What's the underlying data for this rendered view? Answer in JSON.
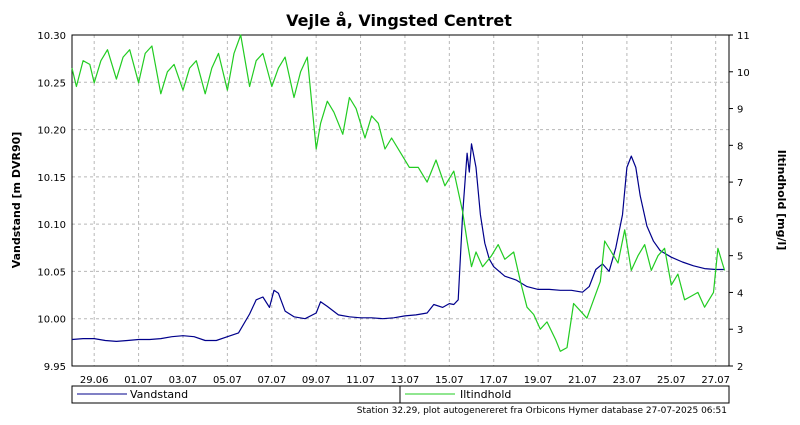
{
  "chart_data": {
    "type": "line",
    "title": "Vejle å, Vingsted Centret",
    "ylabel": "Vandstand [m DVR90]",
    "y2label": "Iltindhold [mg/l]",
    "ylim": [
      9.95,
      10.3
    ],
    "y2lim": [
      2,
      11
    ],
    "yticks": [
      "10.30",
      "10.25",
      "10.20",
      "10.15",
      "10.10",
      "10.05",
      "10.00",
      "9.95"
    ],
    "y2ticks": [
      "11",
      "10",
      "9",
      "8",
      "7",
      "6",
      "5",
      "4",
      "3",
      "2"
    ],
    "xlim": [
      0,
      29.6
    ],
    "xticks": [
      {
        "label": "29.06",
        "x": 1
      },
      {
        "label": "01.07",
        "x": 3
      },
      {
        "label": "03.07",
        "x": 5
      },
      {
        "label": "05.07",
        "x": 7
      },
      {
        "label": "07.07",
        "x": 9
      },
      {
        "label": "09.07",
        "x": 11
      },
      {
        "label": "11.07",
        "x": 13
      },
      {
        "label": "13.07",
        "x": 15
      },
      {
        "label": "15.07",
        "x": 17
      },
      {
        "label": "17.07",
        "x": 19
      },
      {
        "label": "19.07",
        "x": 21
      },
      {
        "label": "21.07",
        "x": 23
      },
      {
        "label": "23.07",
        "x": 25
      },
      {
        "label": "25.07",
        "x": 27
      },
      {
        "label": "27.07",
        "x": 29
      }
    ],
    "grid": true,
    "legend_position": "bottom",
    "footer": "Station 32.29, plot autogenereret fra Orbicons Hymer database 27-07-2025 06:51",
    "series": [
      {
        "name": "Vandstand",
        "axis": "left",
        "color": "#00008b",
        "points": [
          [
            0.0,
            9.978
          ],
          [
            0.5,
            9.979
          ],
          [
            1.0,
            9.979
          ],
          [
            1.5,
            9.977
          ],
          [
            2.0,
            9.976
          ],
          [
            2.5,
            9.977
          ],
          [
            3.0,
            9.978
          ],
          [
            3.5,
            9.978
          ],
          [
            4.0,
            9.979
          ],
          [
            4.5,
            9.981
          ],
          [
            5.0,
            9.982
          ],
          [
            5.5,
            9.981
          ],
          [
            6.0,
            9.977
          ],
          [
            6.5,
            9.977
          ],
          [
            7.0,
            9.981
          ],
          [
            7.5,
            9.985
          ],
          [
            8.0,
            10.005
          ],
          [
            8.3,
            10.02
          ],
          [
            8.6,
            10.023
          ],
          [
            8.9,
            10.012
          ],
          [
            9.1,
            10.03
          ],
          [
            9.3,
            10.027
          ],
          [
            9.6,
            10.008
          ],
          [
            10.0,
            10.002
          ],
          [
            10.5,
            10.0
          ],
          [
            11.0,
            10.006
          ],
          [
            11.2,
            10.018
          ],
          [
            11.5,
            10.013
          ],
          [
            12.0,
            10.004
          ],
          [
            12.5,
            10.002
          ],
          [
            13.0,
            10.001
          ],
          [
            13.5,
            10.001
          ],
          [
            14.0,
            10.0
          ],
          [
            14.5,
            10.001
          ],
          [
            15.0,
            10.003
          ],
          [
            15.5,
            10.004
          ],
          [
            16.0,
            10.006
          ],
          [
            16.3,
            10.015
          ],
          [
            16.7,
            10.012
          ],
          [
            17.0,
            10.016
          ],
          [
            17.2,
            10.015
          ],
          [
            17.4,
            10.02
          ],
          [
            17.6,
            10.11
          ],
          [
            17.8,
            10.175
          ],
          [
            17.9,
            10.155
          ],
          [
            18.0,
            10.185
          ],
          [
            18.2,
            10.16
          ],
          [
            18.4,
            10.11
          ],
          [
            18.6,
            10.08
          ],
          [
            18.8,
            10.063
          ],
          [
            19.0,
            10.055
          ],
          [
            19.5,
            10.045
          ],
          [
            20.0,
            10.041
          ],
          [
            20.5,
            10.034
          ],
          [
            21.0,
            10.031
          ],
          [
            21.5,
            10.031
          ],
          [
            22.0,
            10.03
          ],
          [
            22.5,
            10.03
          ],
          [
            23.0,
            10.028
          ],
          [
            23.3,
            10.034
          ],
          [
            23.6,
            10.052
          ],
          [
            23.9,
            10.058
          ],
          [
            24.2,
            10.05
          ],
          [
            24.5,
            10.075
          ],
          [
            24.8,
            10.11
          ],
          [
            25.0,
            10.16
          ],
          [
            25.2,
            10.172
          ],
          [
            25.4,
            10.16
          ],
          [
            25.6,
            10.13
          ],
          [
            25.9,
            10.098
          ],
          [
            26.2,
            10.082
          ],
          [
            26.5,
            10.072
          ],
          [
            27.0,
            10.065
          ],
          [
            27.5,
            10.06
          ],
          [
            28.0,
            10.056
          ],
          [
            28.5,
            10.053
          ],
          [
            29.0,
            10.052
          ],
          [
            29.4,
            10.052
          ]
        ]
      },
      {
        "name": "Iltindhold",
        "axis": "right",
        "color": "#22cc22",
        "points": [
          [
            0.0,
            10.1
          ],
          [
            0.2,
            9.6
          ],
          [
            0.5,
            10.3
          ],
          [
            0.8,
            10.2
          ],
          [
            1.0,
            9.7
          ],
          [
            1.3,
            10.3
          ],
          [
            1.6,
            10.6
          ],
          [
            2.0,
            9.8
          ],
          [
            2.3,
            10.4
          ],
          [
            2.6,
            10.6
          ],
          [
            3.0,
            9.7
          ],
          [
            3.3,
            10.5
          ],
          [
            3.6,
            10.7
          ],
          [
            4.0,
            9.4
          ],
          [
            4.3,
            10.0
          ],
          [
            4.6,
            10.2
          ],
          [
            5.0,
            9.5
          ],
          [
            5.3,
            10.1
          ],
          [
            5.6,
            10.3
          ],
          [
            6.0,
            9.4
          ],
          [
            6.3,
            10.1
          ],
          [
            6.6,
            10.5
          ],
          [
            7.0,
            9.5
          ],
          [
            7.3,
            10.5
          ],
          [
            7.6,
            11.0
          ],
          [
            8.0,
            9.6
          ],
          [
            8.3,
            10.3
          ],
          [
            8.6,
            10.5
          ],
          [
            9.0,
            9.6
          ],
          [
            9.3,
            10.1
          ],
          [
            9.6,
            10.4
          ],
          [
            10.0,
            9.3
          ],
          [
            10.3,
            10.0
          ],
          [
            10.6,
            10.4
          ],
          [
            11.0,
            7.9
          ],
          [
            11.2,
            8.6
          ],
          [
            11.5,
            9.2
          ],
          [
            11.8,
            8.9
          ],
          [
            12.2,
            8.3
          ],
          [
            12.5,
            9.3
          ],
          [
            12.8,
            9.0
          ],
          [
            13.2,
            8.2
          ],
          [
            13.5,
            8.8
          ],
          [
            13.8,
            8.6
          ],
          [
            14.1,
            7.9
          ],
          [
            14.4,
            8.2
          ],
          [
            14.8,
            7.8
          ],
          [
            15.2,
            7.4
          ],
          [
            15.6,
            7.4
          ],
          [
            16.0,
            7.0
          ],
          [
            16.4,
            7.6
          ],
          [
            16.8,
            6.9
          ],
          [
            17.2,
            7.3
          ],
          [
            17.6,
            6.2
          ],
          [
            17.8,
            5.4
          ],
          [
            18.0,
            4.7
          ],
          [
            18.2,
            5.1
          ],
          [
            18.5,
            4.7
          ],
          [
            18.9,
            5.0
          ],
          [
            19.2,
            5.3
          ],
          [
            19.5,
            4.9
          ],
          [
            19.9,
            5.1
          ],
          [
            20.2,
            4.3
          ],
          [
            20.5,
            3.6
          ],
          [
            20.8,
            3.4
          ],
          [
            21.1,
            3.0
          ],
          [
            21.4,
            3.2
          ],
          [
            21.8,
            2.7
          ],
          [
            22.0,
            2.4
          ],
          [
            22.3,
            2.5
          ],
          [
            22.6,
            3.7
          ],
          [
            22.9,
            3.5
          ],
          [
            23.2,
            3.3
          ],
          [
            23.5,
            3.8
          ],
          [
            23.8,
            4.3
          ],
          [
            24.0,
            5.4
          ],
          [
            24.3,
            5.1
          ],
          [
            24.6,
            4.8
          ],
          [
            24.9,
            5.7
          ],
          [
            25.2,
            4.6
          ],
          [
            25.5,
            5.0
          ],
          [
            25.8,
            5.3
          ],
          [
            26.1,
            4.6
          ],
          [
            26.4,
            5.0
          ],
          [
            26.7,
            5.2
          ],
          [
            27.0,
            4.2
          ],
          [
            27.3,
            4.5
          ],
          [
            27.6,
            3.8
          ],
          [
            27.9,
            3.9
          ],
          [
            28.2,
            4.0
          ],
          [
            28.5,
            3.6
          ],
          [
            28.9,
            4.0
          ],
          [
            29.1,
            5.2
          ],
          [
            29.3,
            4.8
          ],
          [
            29.4,
            4.6
          ]
        ]
      }
    ]
  }
}
